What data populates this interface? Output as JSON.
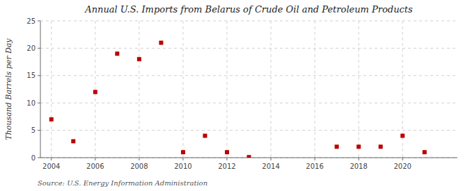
{
  "chart_data": {
    "type": "scatter",
    "title": "Annual U.S. Imports from Belarus of Crude Oil and Petroleum Products",
    "ylabel": "Thousand Barrels per Day",
    "annotations": [
      "Source: U.S. Energy Information Administration"
    ],
    "x": [
      2004,
      2005,
      2006,
      2007,
      2008,
      2009,
      2010,
      2011,
      2012,
      2013,
      2017,
      2018,
      2019,
      2020,
      2021
    ],
    "values": [
      7,
      3,
      12,
      19,
      18,
      21,
      1,
      4,
      1,
      0.1,
      2,
      2,
      2,
      4,
      1
    ],
    "color": "#bb0000",
    "marker": "square",
    "xlim": [
      2003.5,
      2022.5
    ],
    "ylim": [
      0,
      25
    ],
    "xticks": [
      2004,
      2006,
      2008,
      2010,
      2012,
      2014,
      2016,
      2018,
      2020
    ],
    "yticks": [
      0,
      5,
      10,
      15,
      20,
      25
    ],
    "grid": true
  }
}
